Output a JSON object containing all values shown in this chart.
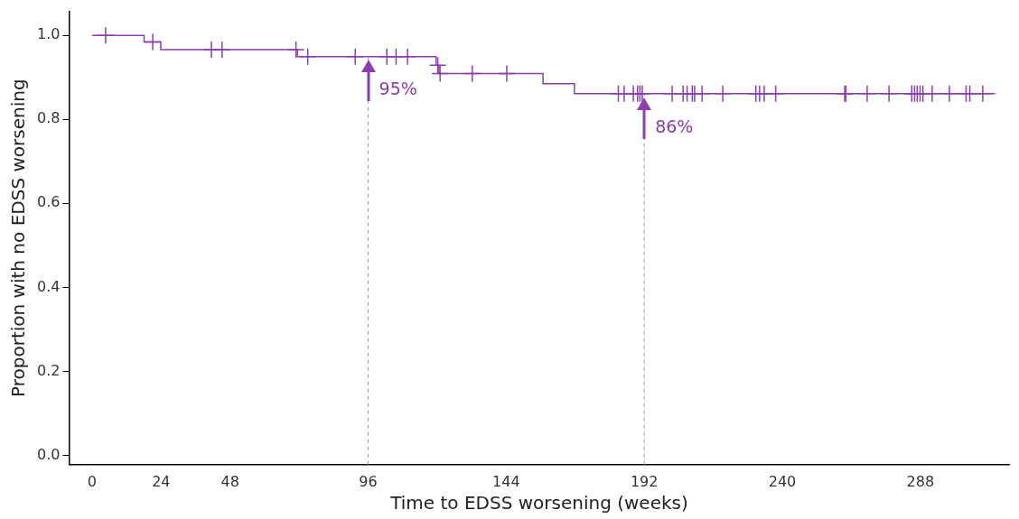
{
  "chart_data": {
    "type": "step",
    "xlabel": "Time to EDSS worsening (weeks)",
    "ylabel": "Proportion with no EDSS worsening",
    "xlim": [
      -8,
      319
    ],
    "xticks": [
      0,
      24,
      48,
      96,
      144,
      192,
      240,
      288
    ],
    "ylim": [
      -0.022,
      1.057
    ],
    "yticks": [
      {
        "value": 0,
        "label": "0.0"
      },
      {
        "value": 0.2,
        "label": "0.2"
      },
      {
        "value": 0.4,
        "label": "0.4"
      },
      {
        "value": 0.6,
        "label": "0.6"
      },
      {
        "value": 0.8,
        "label": "0.8"
      },
      {
        "value": 1,
        "label": "1.0"
      }
    ],
    "grid": false,
    "legend": false,
    "series": [
      {
        "color": "#8b3fae",
        "marker": "none",
        "x": [
          0,
          18.1,
          23.9,
          71.4,
          119.6,
          120.6,
          156.8,
          167.7,
          314
        ],
        "values": [
          1,
          0.984,
          0.966,
          0.949,
          0.929,
          0.909,
          0.885,
          0.861,
          0.861
        ]
      },
      {
        "type": "scatter",
        "color": "#8b3fae",
        "marker": "cross",
        "x": [
          4.7,
          21.1,
          41.5,
          45.2,
          70.9,
          75,
          91.5,
          102.5,
          105.7,
          109.7,
          120.2,
          121,
          132.2,
          144.2,
          183,
          185,
          188.2,
          189.7,
          190.5,
          191.3,
          201.7,
          205.5,
          206.9,
          208.7,
          209.5,
          212.1,
          219.3,
          230.8,
          232.1,
          233.7,
          237.7,
          261.7,
          262.1,
          269.5,
          277.1,
          285,
          286,
          286.9,
          287.9,
          288.9,
          292.1,
          298.1,
          303.9,
          305.2,
          309.7
        ],
        "values": [
          1,
          0.984,
          0.966,
          0.966,
          0.966,
          0.949,
          0.949,
          0.949,
          0.949,
          0.949,
          0.929,
          0.909,
          0.909,
          0.909,
          0.861,
          0.861,
          0.861,
          0.861,
          0.861,
          0.861,
          0.861,
          0.861,
          0.861,
          0.861,
          0.861,
          0.861,
          0.861,
          0.861,
          0.861,
          0.861,
          0.861,
          0.861,
          0.861,
          0.861,
          0.861,
          0.861,
          0.861,
          0.861,
          0.861,
          0.861,
          0.861,
          0.861,
          0.861,
          0.861,
          0.861
        ]
      }
    ],
    "ref_lines": [
      {
        "axis": "x",
        "value": 96,
        "color": "#999999",
        "line_style": "dashed"
      },
      {
        "axis": "x",
        "value": 192,
        "color": "#999999",
        "line_style": "dashed"
      }
    ],
    "annotations": [
      {
        "text": "95%",
        "x": 96,
        "y": 0.95
      },
      {
        "text": "86%",
        "x": 192,
        "y": 0.86
      }
    ]
  }
}
